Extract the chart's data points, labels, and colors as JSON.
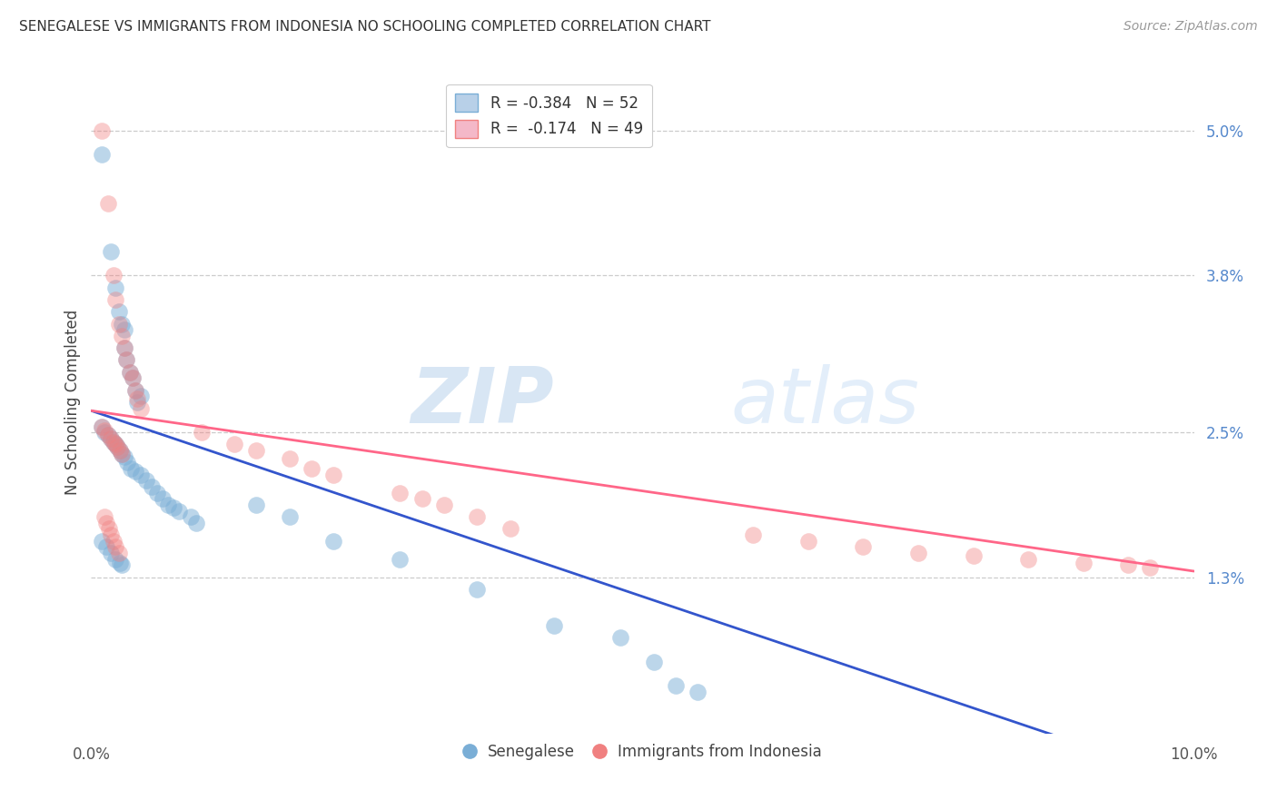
{
  "title": "SENEGALESE VS IMMIGRANTS FROM INDONESIA NO SCHOOLING COMPLETED CORRELATION CHART",
  "source": "Source: ZipAtlas.com",
  "ylabel": "No Schooling Completed",
  "ytick_labels": [
    "5.0%",
    "3.8%",
    "2.5%",
    "1.3%"
  ],
  "ytick_values": [
    0.05,
    0.038,
    0.025,
    0.013
  ],
  "xlim": [
    0.0,
    0.1
  ],
  "ylim": [
    0.0,
    0.055
  ],
  "senegalese_color": "#7aaed6",
  "indonesia_color": "#f08080",
  "trendline_blue_color": "#3355cc",
  "trendline_pink_color": "#ff6688",
  "watermark_text": "ZIPatlas",
  "trendline_blue": [
    0.0268,
    0.058,
    -0.003
  ],
  "trendline_pink": [
    0.0268,
    0.0,
    0.014
  ],
  "senegalese_x": [
    0.001,
    0.0018,
    0.0022,
    0.0025,
    0.0028,
    0.003,
    0.003,
    0.0032,
    0.0035,
    0.0038,
    0.004,
    0.0042,
    0.0045,
    0.001,
    0.0012,
    0.0015,
    0.0018,
    0.002,
    0.0022,
    0.0024,
    0.0026,
    0.0028,
    0.003,
    0.0033,
    0.0036,
    0.004,
    0.0045,
    0.005,
    0.0055,
    0.006,
    0.0065,
    0.007,
    0.0075,
    0.008,
    0.009,
    0.0095,
    0.001,
    0.0014,
    0.0018,
    0.0022,
    0.0026,
    0.0028,
    0.015,
    0.018,
    0.022,
    0.028,
    0.035,
    0.042,
    0.048,
    0.051,
    0.053,
    0.055
  ],
  "senegalese_y": [
    0.048,
    0.04,
    0.037,
    0.035,
    0.034,
    0.0335,
    0.032,
    0.031,
    0.03,
    0.0295,
    0.0285,
    0.0275,
    0.028,
    0.0255,
    0.025,
    0.0248,
    0.0245,
    0.0242,
    0.024,
    0.0238,
    0.0235,
    0.0232,
    0.023,
    0.0225,
    0.022,
    0.0218,
    0.0215,
    0.021,
    0.0205,
    0.02,
    0.0195,
    0.019,
    0.0188,
    0.0185,
    0.018,
    0.0175,
    0.016,
    0.0155,
    0.015,
    0.0145,
    0.0142,
    0.014,
    0.019,
    0.018,
    0.016,
    0.0145,
    0.012,
    0.009,
    0.008,
    0.006,
    0.004,
    0.0035
  ],
  "indonesia_x": [
    0.001,
    0.0015,
    0.002,
    0.0022,
    0.0025,
    0.0028,
    0.003,
    0.0032,
    0.0035,
    0.0038,
    0.004,
    0.0042,
    0.0045,
    0.001,
    0.0012,
    0.0015,
    0.0018,
    0.002,
    0.0022,
    0.0024,
    0.0026,
    0.0028,
    0.01,
    0.013,
    0.015,
    0.018,
    0.02,
    0.022,
    0.0012,
    0.0014,
    0.0016,
    0.0018,
    0.002,
    0.0022,
    0.0025,
    0.028,
    0.03,
    0.032,
    0.035,
    0.038,
    0.06,
    0.065,
    0.07,
    0.075,
    0.08,
    0.085,
    0.09,
    0.094,
    0.096
  ],
  "indonesia_y": [
    0.05,
    0.044,
    0.038,
    0.036,
    0.034,
    0.033,
    0.032,
    0.031,
    0.03,
    0.0295,
    0.0285,
    0.0278,
    0.027,
    0.0255,
    0.0252,
    0.0248,
    0.0245,
    0.0242,
    0.024,
    0.0238,
    0.0235,
    0.0232,
    0.025,
    0.024,
    0.0235,
    0.0228,
    0.022,
    0.0215,
    0.018,
    0.0175,
    0.017,
    0.0165,
    0.016,
    0.0155,
    0.015,
    0.02,
    0.0195,
    0.019,
    0.018,
    0.017,
    0.0165,
    0.016,
    0.0155,
    0.015,
    0.0148,
    0.0145,
    0.0142,
    0.014,
    0.0138
  ]
}
